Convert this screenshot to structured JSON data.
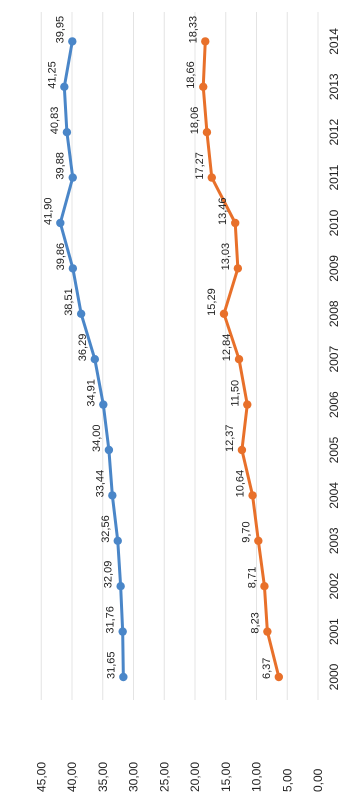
{
  "chart_data": {
    "type": "line",
    "orientation": "rotated 90 degrees counter-clockwise",
    "categories": [
      "2000",
      "2001",
      "2002",
      "2003",
      "2004",
      "2005",
      "2006",
      "2007",
      "2008",
      "2009",
      "2010",
      "2011",
      "2012",
      "2013",
      "2014"
    ],
    "series": [
      {
        "color": "#4a86c8",
        "values": [
          31.65,
          31.76,
          32.09,
          32.56,
          33.44,
          34.0,
          34.91,
          36.29,
          38.51,
          39.86,
          41.9,
          39.88,
          40.83,
          41.25,
          39.95
        ],
        "labels": [
          "31,65",
          "31,76",
          "32,09",
          "32,56",
          "33,44",
          "34,00",
          "34,91",
          "36,29",
          "38,51",
          "39,86",
          "41,90",
          "39,88",
          "40,83",
          "41,25",
          "39,95"
        ]
      },
      {
        "color": "#e8702a",
        "values": [
          6.37,
          8.23,
          8.71,
          9.7,
          10.64,
          12.37,
          11.5,
          12.84,
          15.29,
          13.03,
          13.46,
          17.27,
          18.06,
          18.66,
          18.33
        ],
        "labels": [
          "6,37",
          "8,23",
          "8,71",
          "9,70",
          "10,64",
          "12,37",
          "11,50",
          "12,84",
          "15,29",
          "13,03",
          "13,46",
          "17,27",
          "18,06",
          "18,66",
          "18,33"
        ]
      }
    ],
    "y_ticks": [
      "0,00",
      "5,00",
      "10,00",
      "15,00",
      "20,00",
      "25,00",
      "30,00",
      "35,00",
      "40,00",
      "45,00"
    ],
    "y_tick_values": [
      0,
      5,
      10,
      15,
      20,
      25,
      30,
      35,
      40,
      45
    ],
    "ylim": [
      0,
      45
    ],
    "grid": true,
    "legend": "none"
  }
}
